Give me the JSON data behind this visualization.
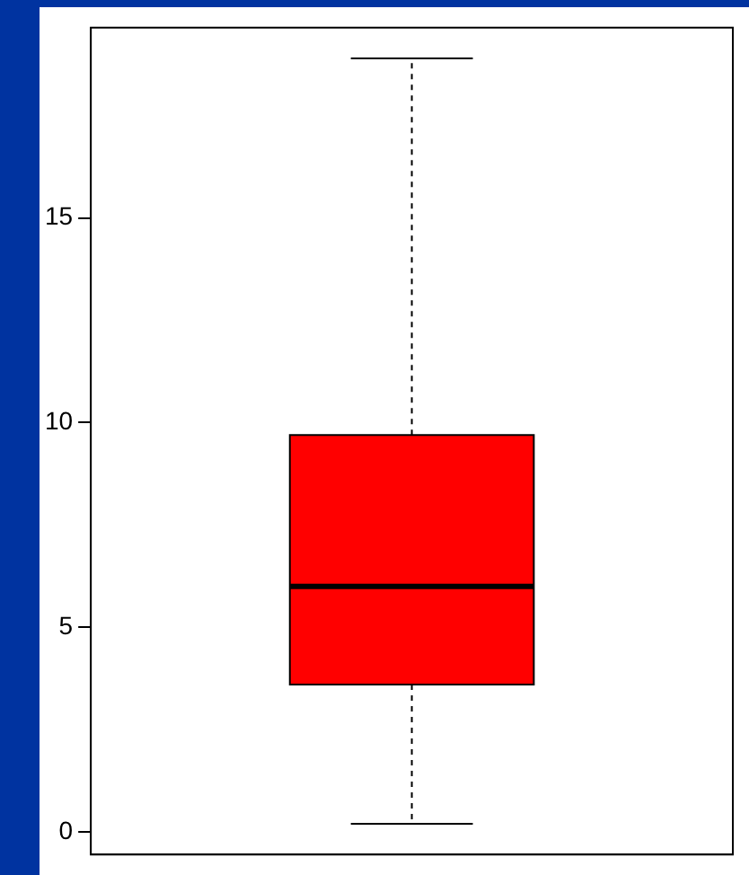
{
  "chart_data": {
    "type": "box",
    "categories": [
      null
    ],
    "color": "#ff0000",
    "boxes": [
      {
        "low": 0.2,
        "q1": 3.6,
        "median": 6.0,
        "q3": 9.7,
        "high": 18.9
      }
    ],
    "ylim": [
      -0.55,
      19.65
    ],
    "yticks": [
      0,
      5,
      10,
      15
    ],
    "tick_labels": "y"
  }
}
